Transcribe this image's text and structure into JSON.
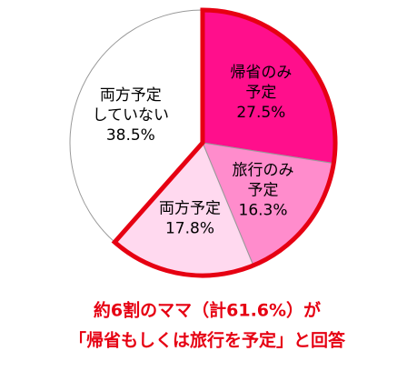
{
  "chart_data": {
    "type": "pie",
    "categories": [
      [
        "帰省のみ",
        "予定"
      ],
      [
        "旅行のみ",
        "予定"
      ],
      [
        "両方予定"
      ],
      [
        "両方予定",
        "していない"
      ]
    ],
    "values": [
      27.5,
      16.3,
      17.8,
      38.5
    ],
    "value_labels": [
      "27.5%",
      "16.3%",
      "17.8%",
      "38.5%"
    ],
    "colors": [
      "#ff0f8c",
      "#ff8ccc",
      "#ffd9ef",
      "#ffffff"
    ],
    "annotations": [
      "約6割のママ（計61.6%）が",
      "「帰省もしくは旅行を予定」と回答"
    ]
  }
}
